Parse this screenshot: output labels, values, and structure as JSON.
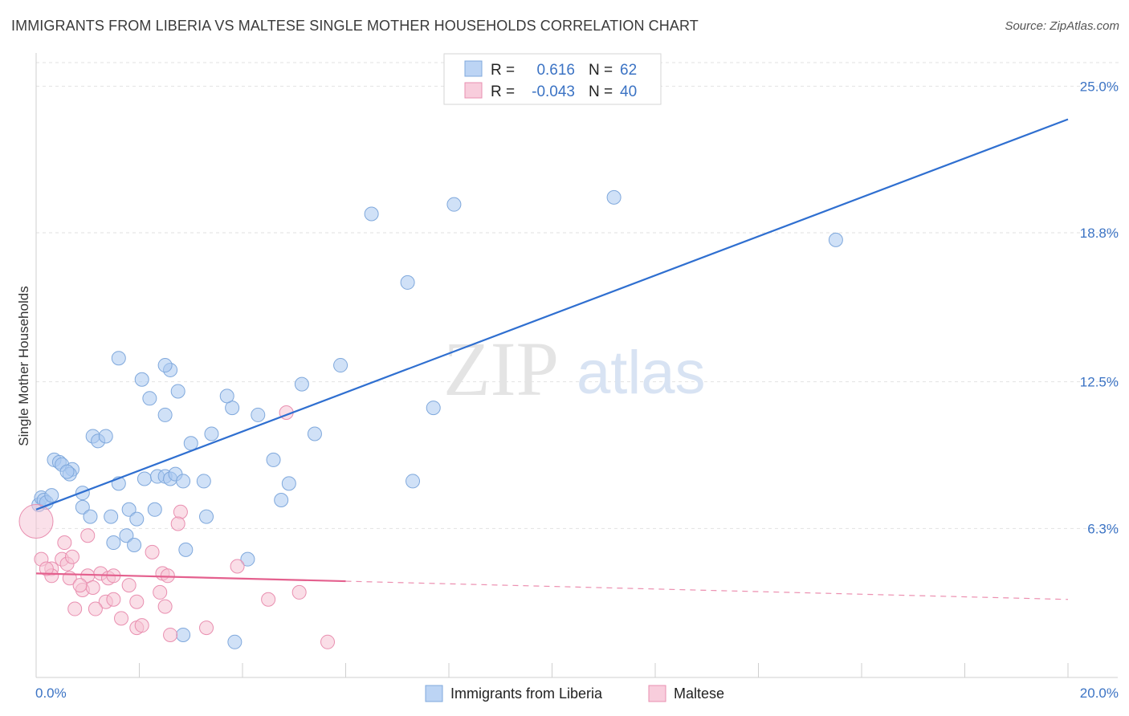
{
  "chart_data": {
    "type": "scatter",
    "title": "IMMIGRANTS FROM LIBERIA VS MALTESE SINGLE MOTHER HOUSEHOLDS CORRELATION CHART",
    "source": "Source: ZipAtlas.com",
    "ylabel": "Single Mother Households",
    "xlabel": "",
    "xlim": [
      0,
      20
    ],
    "ylim": [
      0,
      26.2
    ],
    "x_tick_labels": [
      "0.0%",
      "20.0%"
    ],
    "y_ticks": [
      {
        "value": 6.3,
        "label": "6.3%"
      },
      {
        "value": 12.5,
        "label": "12.5%"
      },
      {
        "value": 18.8,
        "label": "18.8%"
      },
      {
        "value": 25.0,
        "label": "25.0%"
      }
    ],
    "watermark": {
      "zip": "ZIP",
      "atlas": "atlas"
    },
    "legend": [
      {
        "r_label": "R =",
        "r_value": "0.616",
        "n_label": "N =",
        "n_value": "62"
      },
      {
        "r_label": "R =",
        "r_value": "-0.043",
        "n_label": "N =",
        "n_value": "40"
      }
    ],
    "series": [
      {
        "name": "Immigrants from Liberia",
        "color": "#a9c8f0",
        "stroke": "#7fa8dc",
        "line_color": "#2f6fd0",
        "trend": {
          "x0": 0,
          "y0": 7.1,
          "x1": 20,
          "y1": 23.6,
          "dashed_from": null
        },
        "points": [
          [
            0.05,
            7.3
          ],
          [
            0.1,
            7.6
          ],
          [
            0.15,
            7.5
          ],
          [
            0.2,
            7.4
          ],
          [
            0.3,
            7.7
          ],
          [
            0.35,
            9.2
          ],
          [
            0.45,
            9.1
          ],
          [
            0.5,
            9.0
          ],
          [
            0.7,
            8.8
          ],
          [
            0.65,
            8.6
          ],
          [
            0.6,
            8.7
          ],
          [
            1.1,
            10.2
          ],
          [
            1.2,
            10.0
          ],
          [
            1.35,
            10.2
          ],
          [
            0.9,
            7.8
          ],
          [
            0.9,
            7.2
          ],
          [
            1.05,
            6.8
          ],
          [
            1.45,
            6.8
          ],
          [
            1.6,
            8.2
          ],
          [
            1.5,
            5.7
          ],
          [
            1.75,
            6.0
          ],
          [
            1.9,
            5.6
          ],
          [
            1.8,
            7.1
          ],
          [
            1.95,
            6.7
          ],
          [
            2.1,
            8.4
          ],
          [
            2.3,
            7.1
          ],
          [
            2.35,
            8.5
          ],
          [
            2.5,
            8.5
          ],
          [
            2.6,
            8.4
          ],
          [
            2.7,
            8.6
          ],
          [
            2.85,
            8.3
          ],
          [
            2.9,
            5.4
          ],
          [
            3.3,
            6.8
          ],
          [
            3.25,
            8.3
          ],
          [
            3.0,
            9.9
          ],
          [
            3.4,
            10.3
          ],
          [
            3.8,
            11.4
          ],
          [
            3.7,
            11.9
          ],
          [
            4.3,
            11.1
          ],
          [
            2.5,
            11.1
          ],
          [
            2.75,
            12.1
          ],
          [
            2.2,
            11.8
          ],
          [
            2.05,
            12.6
          ],
          [
            2.6,
            13.0
          ],
          [
            2.5,
            13.2
          ],
          [
            1.6,
            13.5
          ],
          [
            4.6,
            9.2
          ],
          [
            4.9,
            8.2
          ],
          [
            4.75,
            7.5
          ],
          [
            5.15,
            12.4
          ],
          [
            5.4,
            10.3
          ],
          [
            5.9,
            13.2
          ],
          [
            6.5,
            19.6
          ],
          [
            7.2,
            16.7
          ],
          [
            7.3,
            8.3
          ],
          [
            7.7,
            11.4
          ],
          [
            8.1,
            20.0
          ],
          [
            11.2,
            20.3
          ],
          [
            15.5,
            18.5
          ],
          [
            4.1,
            5.0
          ],
          [
            3.85,
            1.5
          ],
          [
            2.85,
            1.8
          ]
        ]
      },
      {
        "name": "Maltese",
        "color": "#f6c2d4",
        "stroke": "#e98fb0",
        "line_color": "#e4608e",
        "trend": {
          "x0": 0,
          "y0": 4.4,
          "x1": 20,
          "y1": 3.3,
          "dashed_from": 6.0
        },
        "points": [
          [
            0.1,
            5.0
          ],
          [
            0.3,
            4.6
          ],
          [
            0.5,
            5.0
          ],
          [
            0.6,
            4.8
          ],
          [
            0.3,
            4.3
          ],
          [
            0.55,
            5.7
          ],
          [
            0.7,
            5.1
          ],
          [
            0.65,
            4.2
          ],
          [
            0.9,
            3.7
          ],
          [
            1.0,
            4.3
          ],
          [
            1.1,
            3.8
          ],
          [
            1.25,
            4.4
          ],
          [
            1.4,
            4.2
          ],
          [
            1.5,
            4.3
          ],
          [
            1.35,
            3.2
          ],
          [
            1.5,
            3.3
          ],
          [
            1.15,
            2.9
          ],
          [
            1.65,
            2.5
          ],
          [
            1.8,
            3.9
          ],
          [
            1.95,
            3.2
          ],
          [
            1.95,
            2.1
          ],
          [
            2.05,
            2.2
          ],
          [
            2.25,
            5.3
          ],
          [
            2.4,
            3.6
          ],
          [
            2.45,
            4.4
          ],
          [
            2.55,
            4.3
          ],
          [
            2.5,
            3.0
          ],
          [
            2.6,
            1.8
          ],
          [
            2.8,
            7.0
          ],
          [
            2.75,
            6.5
          ],
          [
            3.3,
            2.1
          ],
          [
            3.9,
            4.7
          ],
          [
            4.5,
            3.3
          ],
          [
            4.85,
            11.2
          ],
          [
            5.1,
            3.6
          ],
          [
            5.65,
            1.5
          ],
          [
            0.85,
            3.9
          ],
          [
            0.75,
            2.9
          ],
          [
            1.0,
            6.0
          ],
          [
            0.2,
            4.6
          ]
        ]
      }
    ]
  }
}
